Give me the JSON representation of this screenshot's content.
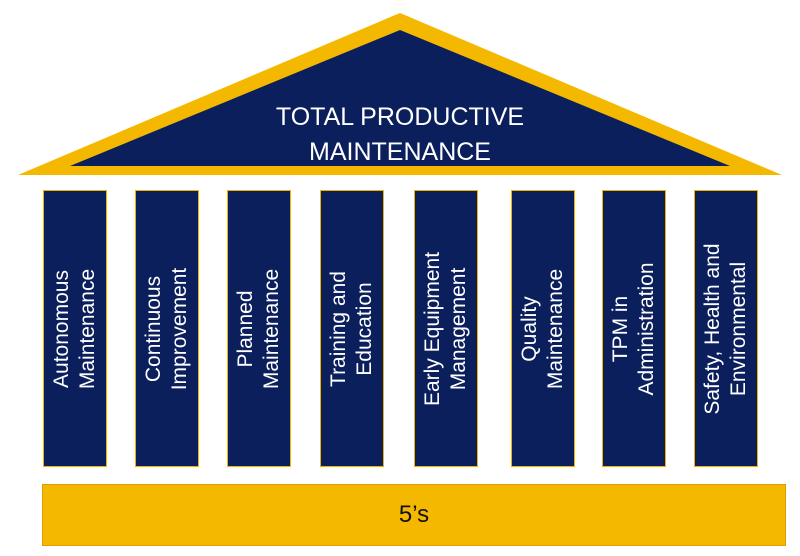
{
  "roof": {
    "line1": "TOTAL PRODUCTIVE",
    "line2": "MAINTENANCE"
  },
  "pillars": [
    {
      "line1": "Autonomous",
      "line2": "Maintenance"
    },
    {
      "line1": "Continuous",
      "line2": "Improvement"
    },
    {
      "line1": "Planned",
      "line2": "Maintenance"
    },
    {
      "line1": "Training and",
      "line2": "Education"
    },
    {
      "line1": "Early Equipment",
      "line2": "Management"
    },
    {
      "line1": "Quality",
      "line2": "Maintenance"
    },
    {
      "line1": "TPM in",
      "line2": "Administration"
    },
    {
      "line1": "Safety, Health and",
      "line2": "Environmental"
    }
  ],
  "base": {
    "label": "5’s"
  },
  "colors": {
    "navy": "#0b1f5c",
    "gold": "#f5b800"
  }
}
